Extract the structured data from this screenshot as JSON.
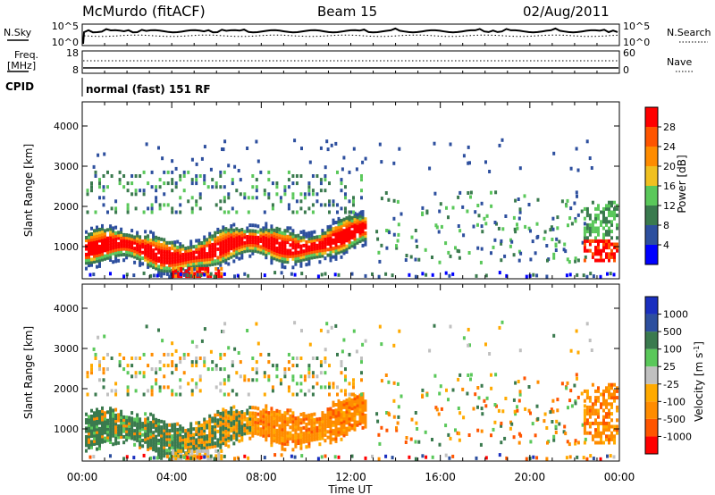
{
  "header": {
    "station": "McMurdo (fitACF)",
    "beam": "Beam 15",
    "date": "02/Aug/2011"
  },
  "panel_labels": {
    "nsky": "N.Sky",
    "nsearch": "N.Search",
    "freq_line1": "Freq.",
    "freq_line2": "[MHz]",
    "nave": "Nave",
    "cpid": "CPID",
    "cpid_value": "normal (fast) 151 RF"
  },
  "colors": {
    "power": [
      "#0000ff",
      "#2d4f9e",
      "#3a7a4e",
      "#5ac85a",
      "#f0c020",
      "#ff8c00",
      "#ff5500",
      "#ff0000"
    ],
    "velocity": [
      "#ff0000",
      "#ff5500",
      "#ff8c00",
      "#ffaa00",
      "#c0c0c0",
      "#5ac85a",
      "#3a7a4e",
      "#2d4f9e",
      "#1a2fbf"
    ]
  },
  "chart_data": [
    {
      "type": "line",
      "name": "noise-panel",
      "left_ticks": [
        "10^5",
        "10^0"
      ],
      "right_ticks": [
        "10^5",
        "10^0"
      ],
      "series": [
        {
          "name": "N.Sky",
          "style": "solid"
        },
        {
          "name": "N.Search",
          "style": "dotted"
        }
      ]
    },
    {
      "type": "line",
      "name": "freq-panel",
      "left_ticks": [
        "18",
        "8"
      ],
      "right_ticks": [
        "60",
        "0"
      ],
      "series": [
        {
          "name": "Freq.",
          "style": "solid"
        },
        {
          "name": "Nave",
          "style": "dotted"
        }
      ]
    },
    {
      "type": "heatmap",
      "name": "power-panel",
      "ylabel": "Slant Range [km]",
      "yticks": [
        "1000",
        "2000",
        "3000",
        "4000"
      ],
      "ylim": [
        200,
        4600
      ],
      "xlim_hours": [
        0,
        24
      ],
      "colorbar_label": "Power [dB]",
      "colorbar_ticks": [
        "4",
        "8",
        "12",
        "16",
        "20",
        "24",
        "28"
      ]
    },
    {
      "type": "heatmap",
      "name": "velocity-panel",
      "ylabel": "Slant Range [km]",
      "yticks": [
        "1000",
        "2000",
        "3000",
        "4000"
      ],
      "ylim": [
        200,
        4600
      ],
      "xlim_hours": [
        0,
        24
      ],
      "colorbar_label": "Velocity [m s^-1]",
      "colorbar_ticks": [
        "1000",
        "500",
        "100",
        "25",
        "-25",
        "-100",
        "-500",
        "-1000"
      ]
    }
  ],
  "xaxis": {
    "ticks": [
      "00:00",
      "04:00",
      "08:00",
      "12:00",
      "16:00",
      "20:00",
      "00:00"
    ],
    "label": "Time UT"
  }
}
